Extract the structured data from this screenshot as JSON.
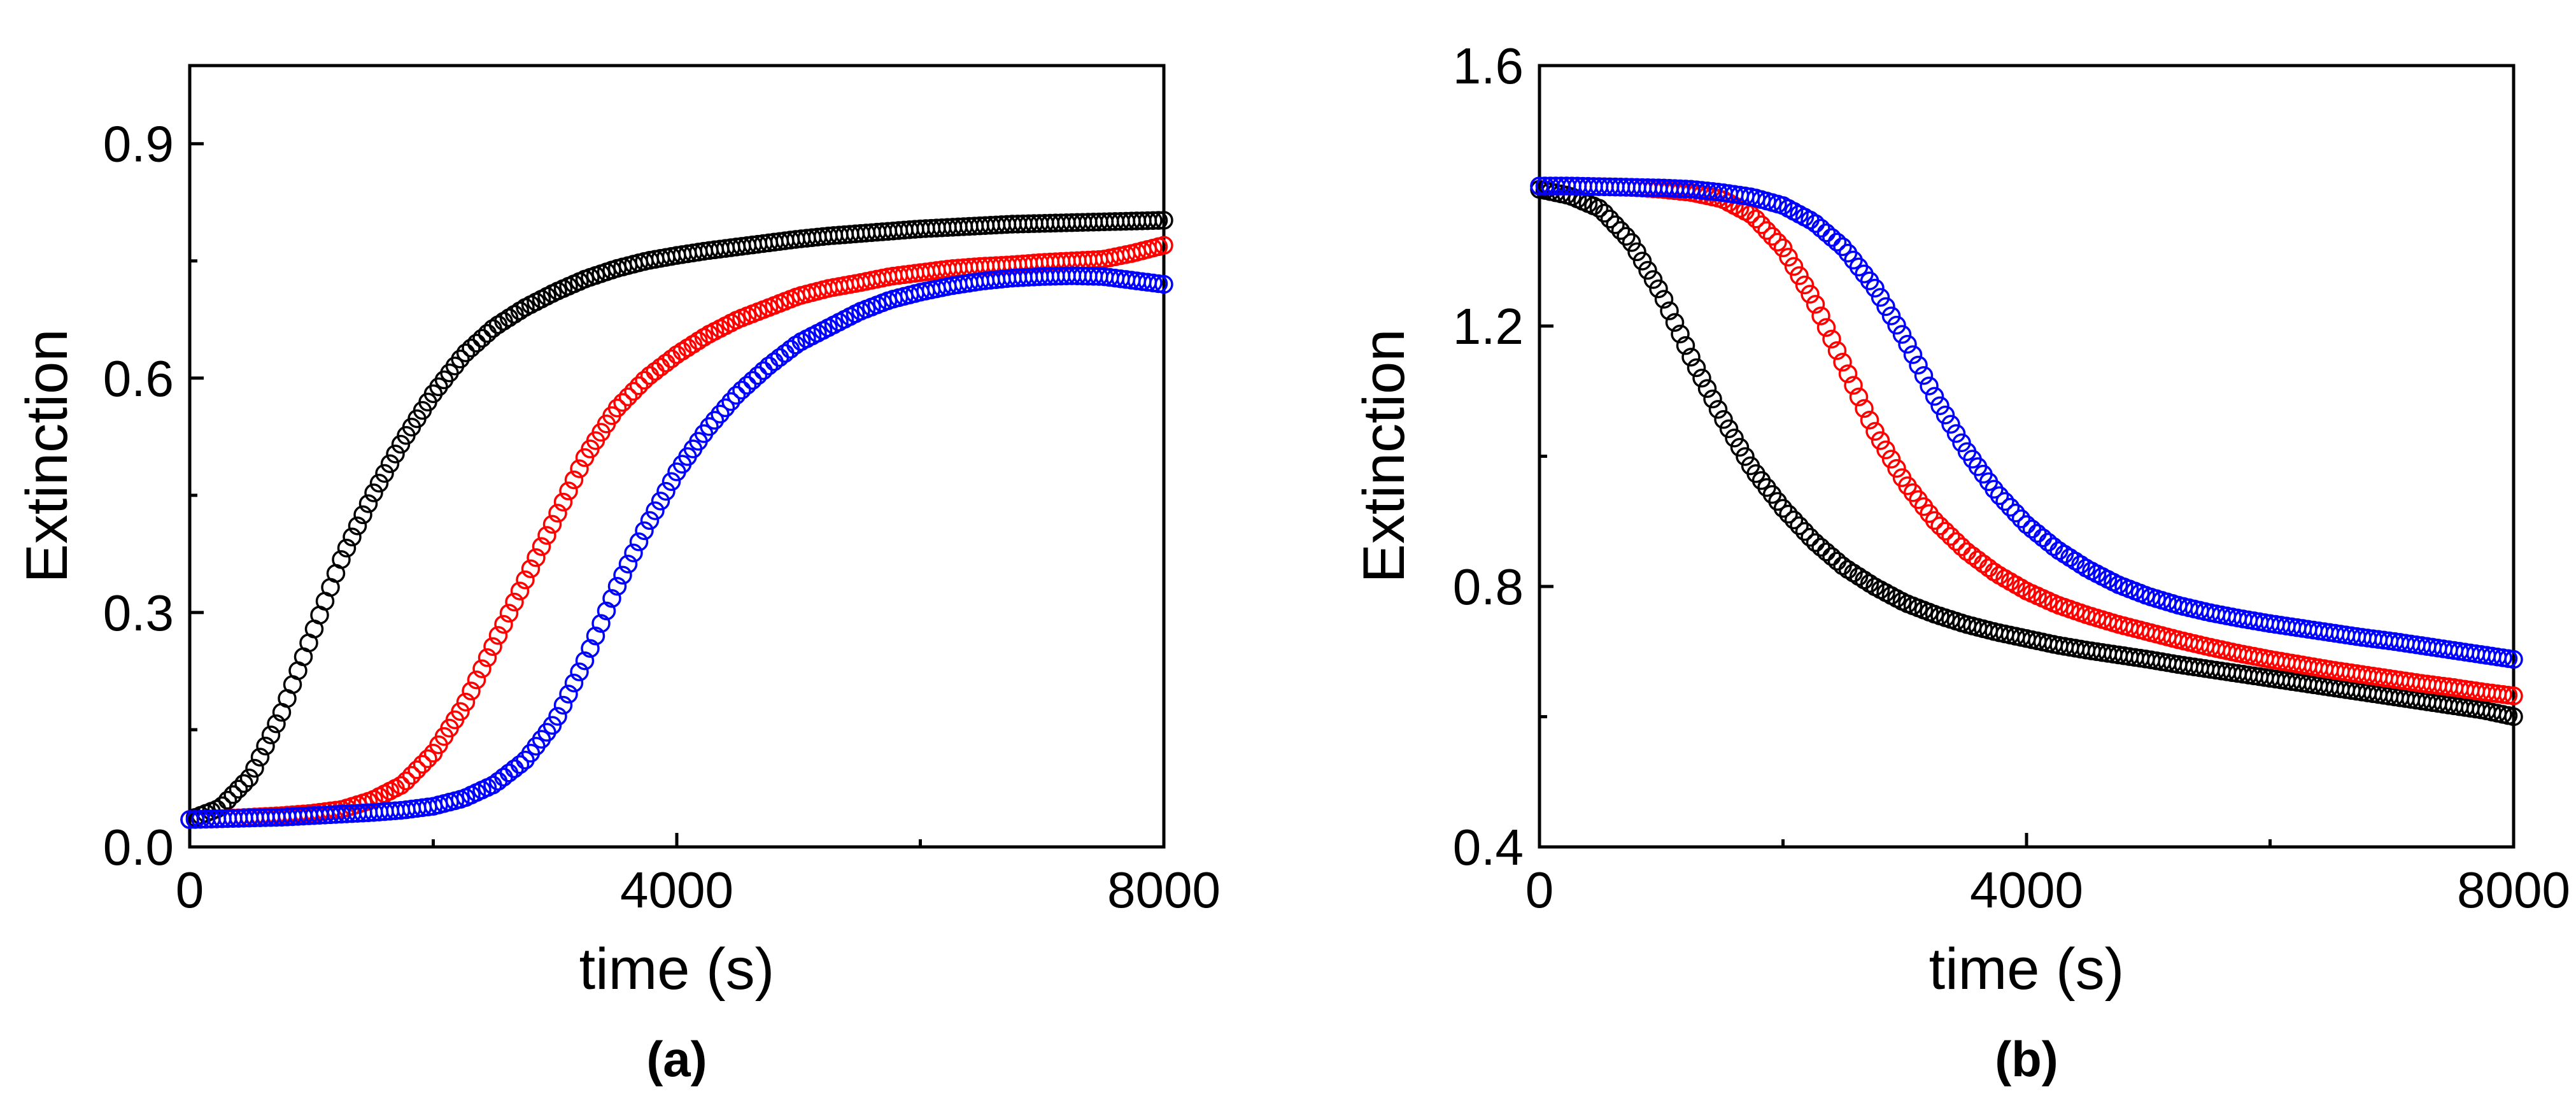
{
  "chart_data": [
    {
      "type": "scatter",
      "panel_label": "(a)",
      "xlabel": "time (s)",
      "ylabel": "Extinction",
      "xlim": [
        0,
        8000
      ],
      "ylim": [
        0,
        1.0
      ],
      "xticks": [
        0,
        4000,
        8000
      ],
      "xtick_labels": [
        "0",
        "4000",
        "8000"
      ],
      "yticks": [
        0,
        0.3,
        0.6,
        0.9
      ],
      "ytick_labels": [
        "0.0",
        "0.3",
        "0.6",
        "0.9"
      ],
      "series": [
        {
          "name": "black",
          "color": "#000000",
          "x": [
            0,
            250,
            500,
            750,
            1000,
            1250,
            1500,
            1750,
            2000,
            2250,
            2500,
            2750,
            3000,
            3250,
            3500,
            3750,
            4000,
            4250,
            4500,
            4750,
            5000,
            5250,
            5500,
            5750,
            6000,
            6250,
            6500,
            6750,
            7000,
            7250,
            7500,
            7750,
            8000
          ],
          "y": [
            0.035,
            0.05,
            0.09,
            0.17,
            0.27,
            0.37,
            0.45,
            0.52,
            0.58,
            0.63,
            0.665,
            0.69,
            0.71,
            0.727,
            0.74,
            0.75,
            0.757,
            0.763,
            0.768,
            0.773,
            0.778,
            0.782,
            0.785,
            0.788,
            0.791,
            0.793,
            0.795,
            0.797,
            0.798,
            0.799,
            0.8,
            0.801,
            0.802
          ]
        },
        {
          "name": "red",
          "color": "#ff0000",
          "x": [
            0,
            250,
            500,
            750,
            1000,
            1250,
            1500,
            1750,
            2000,
            2250,
            2500,
            2750,
            3000,
            3250,
            3500,
            3750,
            4000,
            4250,
            4500,
            4750,
            5000,
            5250,
            5500,
            5750,
            6000,
            6250,
            6500,
            6750,
            7000,
            7250,
            7500,
            7750,
            8000
          ],
          "y": [
            0.035,
            0.036,
            0.038,
            0.04,
            0.043,
            0.048,
            0.06,
            0.08,
            0.12,
            0.18,
            0.26,
            0.34,
            0.42,
            0.5,
            0.56,
            0.6,
            0.63,
            0.655,
            0.675,
            0.69,
            0.705,
            0.715,
            0.722,
            0.73,
            0.735,
            0.74,
            0.743,
            0.745,
            0.748,
            0.75,
            0.752,
            0.76,
            0.77
          ]
        },
        {
          "name": "blue",
          "color": "#0000ff",
          "x": [
            0,
            250,
            500,
            750,
            1000,
            1250,
            1500,
            1750,
            2000,
            2250,
            2500,
            2750,
            3000,
            3250,
            3500,
            3750,
            4000,
            4250,
            4500,
            4750,
            5000,
            5250,
            5500,
            5750,
            6000,
            6250,
            6500,
            6750,
            7000,
            7250,
            7500,
            7750,
            8000
          ],
          "y": [
            0.035,
            0.036,
            0.037,
            0.038,
            0.04,
            0.042,
            0.044,
            0.047,
            0.052,
            0.062,
            0.08,
            0.11,
            0.16,
            0.24,
            0.33,
            0.41,
            0.48,
            0.535,
            0.58,
            0.615,
            0.645,
            0.665,
            0.685,
            0.7,
            0.71,
            0.718,
            0.724,
            0.728,
            0.73,
            0.731,
            0.73,
            0.725,
            0.72
          ]
        }
      ]
    },
    {
      "type": "scatter",
      "panel_label": "(b)",
      "xlabel": "time (s)",
      "ylabel": "Extinction",
      "xlim": [
        0,
        8000
      ],
      "ylim": [
        0.4,
        1.6
      ],
      "xticks": [
        0,
        4000,
        8000
      ],
      "xtick_labels": [
        "0",
        "4000",
        "8000"
      ],
      "yticks": [
        0.4,
        0.8,
        1.2,
        1.6
      ],
      "ytick_labels": [
        "0.4",
        "0.8",
        "1.2",
        "1.6"
      ],
      "series": [
        {
          "name": "black",
          "color": "#000000",
          "x": [
            0,
            250,
            500,
            750,
            1000,
            1250,
            1500,
            1750,
            2000,
            2250,
            2500,
            2750,
            3000,
            3250,
            3500,
            3750,
            4000,
            4250,
            4500,
            4750,
            5000,
            5250,
            5500,
            5750,
            6000,
            6250,
            6500,
            6750,
            7000,
            7250,
            7500,
            7750,
            8000
          ],
          "y": [
            1.41,
            1.4,
            1.38,
            1.33,
            1.25,
            1.15,
            1.06,
            0.98,
            0.92,
            0.87,
            0.83,
            0.8,
            0.775,
            0.757,
            0.742,
            0.73,
            0.72,
            0.71,
            0.702,
            0.695,
            0.688,
            0.68,
            0.673,
            0.666,
            0.659,
            0.652,
            0.645,
            0.638,
            0.631,
            0.624,
            0.617,
            0.61,
            0.6
          ]
        },
        {
          "name": "red",
          "color": "#ff0000",
          "x": [
            0,
            250,
            500,
            750,
            1000,
            1250,
            1500,
            1750,
            2000,
            2250,
            2500,
            2750,
            3000,
            3250,
            3500,
            3750,
            4000,
            4250,
            4500,
            4750,
            5000,
            5250,
            5500,
            5750,
            6000,
            6250,
            6500,
            6750,
            7000,
            7250,
            7500,
            7750,
            8000
          ],
          "y": [
            1.415,
            1.415,
            1.414,
            1.413,
            1.41,
            1.405,
            1.395,
            1.37,
            1.32,
            1.24,
            1.14,
            1.04,
            0.96,
            0.9,
            0.855,
            0.82,
            0.793,
            0.772,
            0.756,
            0.742,
            0.73,
            0.718,
            0.707,
            0.697,
            0.688,
            0.68,
            0.672,
            0.665,
            0.658,
            0.651,
            0.645,
            0.638,
            0.632
          ]
        },
        {
          "name": "blue",
          "color": "#0000ff",
          "x": [
            0,
            250,
            500,
            750,
            1000,
            1250,
            1500,
            1750,
            2000,
            2250,
            2500,
            2750,
            3000,
            3250,
            3500,
            3750,
            4000,
            4250,
            4500,
            4750,
            5000,
            5250,
            5500,
            5750,
            6000,
            6250,
            6500,
            6750,
            7000,
            7250,
            7500,
            7750,
            8000
          ],
          "y": [
            1.415,
            1.415,
            1.414,
            1.413,
            1.412,
            1.41,
            1.405,
            1.398,
            1.385,
            1.36,
            1.32,
            1.26,
            1.18,
            1.09,
            1.01,
            0.945,
            0.895,
            0.857,
            0.827,
            0.803,
            0.785,
            0.771,
            0.76,
            0.751,
            0.743,
            0.736,
            0.729,
            0.722,
            0.716,
            0.709,
            0.702,
            0.695,
            0.688
          ]
        }
      ]
    }
  ]
}
